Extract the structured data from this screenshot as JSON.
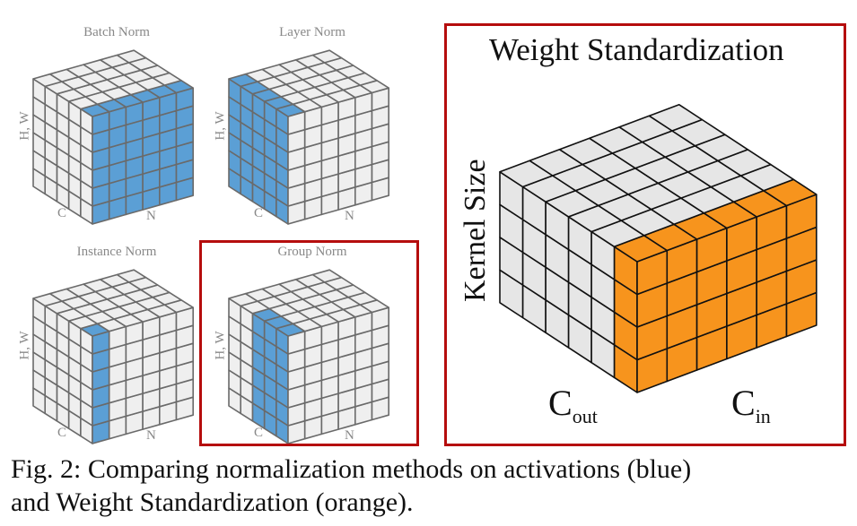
{
  "colors": {
    "activation": "#5b9fd5",
    "weight": "#f7941d",
    "cell": "#efefef",
    "cell_large": "#e6e6e6",
    "highlight_box": "#b50d0d"
  },
  "cubes": [
    {
      "title": "Batch Norm",
      "axis_hw": "H, W",
      "axis_c": "C",
      "axis_n": "N",
      "normalized_over": "C slice (all N, H, W)"
    },
    {
      "title": "Layer Norm",
      "axis_hw": "H, W",
      "axis_c": "C",
      "axis_n": "N",
      "normalized_over": "N slice (all C, H, W)"
    },
    {
      "title": "Instance Norm",
      "axis_hw": "H, W",
      "axis_c": "C",
      "axis_n": "N",
      "normalized_over": "single C and N"
    },
    {
      "title": "Group Norm",
      "axis_hw": "H, W",
      "axis_c": "C",
      "axis_n": "N",
      "normalized_over": "group of C, single N"
    }
  ],
  "weight_standardization": {
    "title": "Weight Standardization",
    "axis_kernel": "Kernel Size",
    "axis_cout": "C",
    "axis_cout_sub": "out",
    "axis_cin": "C",
    "axis_cin_sub": "in"
  },
  "caption": {
    "line1": "Fig. 2: Comparing normalization methods on activations (blue)",
    "line2": "and Weight Standardization (orange)."
  }
}
